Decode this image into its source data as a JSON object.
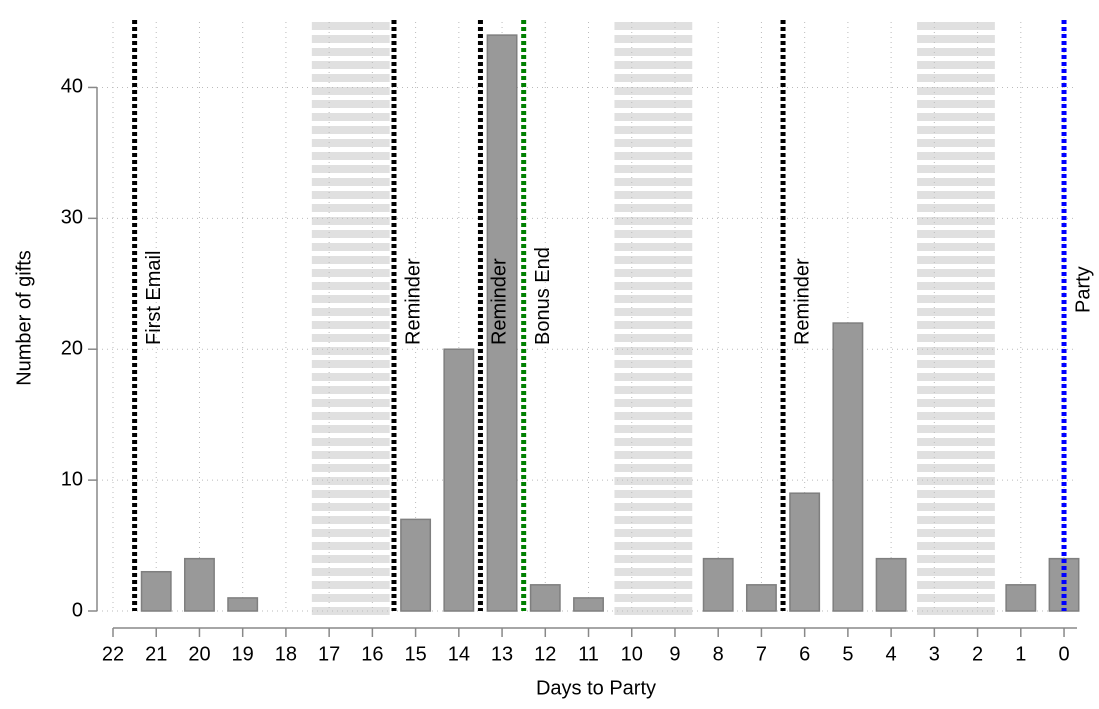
{
  "chart_data": {
    "type": "bar",
    "x_label": "Days to Party",
    "y_label": "Number of gifts",
    "x": [
      21,
      20,
      19,
      15,
      14,
      13,
      12,
      11,
      8,
      7,
      6,
      5,
      4,
      1,
      0
    ],
    "values": [
      3,
      4,
      1,
      7,
      20,
      44,
      2,
      1,
      4,
      2,
      9,
      22,
      4,
      2,
      4
    ],
    "color": "#999999",
    "xlim": [
      22,
      -0.3
    ],
    "xticks": [
      22,
      21,
      20,
      19,
      18,
      17,
      16,
      15,
      14,
      13,
      12,
      11,
      10,
      9,
      8,
      7,
      6,
      5,
      4,
      3,
      2,
      1,
      0
    ],
    "ylim": [
      0,
      45
    ],
    "yticks": [
      0,
      10,
      20,
      30,
      40
    ],
    "grid": true,
    "shaded_spans": [
      [
        17.4,
        15.6
      ],
      [
        10.4,
        8.6
      ],
      [
        3.4,
        1.6
      ]
    ],
    "shade_color": "#e0e0e0",
    "events": [
      {
        "x": 21.5,
        "label": "First Email",
        "color": "#000000"
      },
      {
        "x": 15.5,
        "label": "Reminder",
        "color": "#000000"
      },
      {
        "x": 13.5,
        "label": "Reminder",
        "color": "#000000"
      },
      {
        "x": 12.5,
        "label": "Bonus End",
        "color": "#008000"
      },
      {
        "x": 6.5,
        "label": "Reminder",
        "color": "#000000"
      },
      {
        "x": 0,
        "label": "Party",
        "color": "#0000ff"
      }
    ]
  }
}
